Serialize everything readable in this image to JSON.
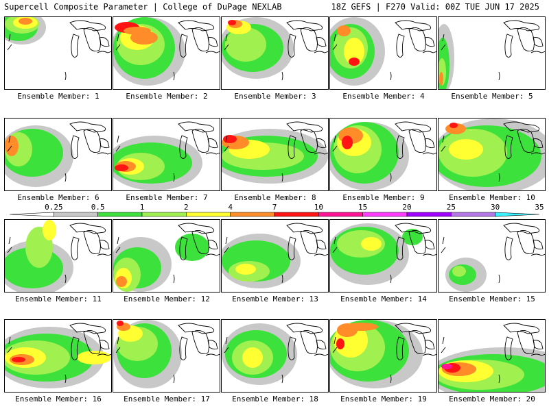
{
  "header": {
    "left": "Supercell Composite Parameter | College of DuPage NEXLAB",
    "right": "18Z GEFS | F270 Valid: 00Z TUE JUN 17 2025"
  },
  "legend": {
    "levels": [
      "0.25",
      "0.5",
      "1",
      "2",
      "4",
      "7",
      "10",
      "15",
      "20",
      "25",
      "30",
      "35"
    ],
    "colors": [
      "#ffffff",
      "#c8c8c8",
      "#3ce13c",
      "#a0f050",
      "#ffff32",
      "#ff8c28",
      "#ff1414",
      "#ff1493",
      "#ff3cff",
      "#a000ff",
      "#b478e6",
      "#3cf0ff"
    ]
  },
  "panels": [
    {
      "label": "Ensemble Member: 1"
    },
    {
      "label": "Ensemble Member: 2"
    },
    {
      "label": "Ensemble Member: 3"
    },
    {
      "label": "Ensemble Member: 4"
    },
    {
      "label": "Ensemble Member: 5"
    },
    {
      "label": "Ensemble Member: 6"
    },
    {
      "label": "Ensemble Member: 7"
    },
    {
      "label": "Ensemble Member: 8"
    },
    {
      "label": "Ensemble Member: 9"
    },
    {
      "label": "Ensemble Member: 10"
    },
    {
      "label": "Ensemble Member: 11"
    },
    {
      "label": "Ensemble Member: 12"
    },
    {
      "label": "Ensemble Member: 13"
    },
    {
      "label": "Ensemble Member: 14"
    },
    {
      "label": "Ensemble Member: 15"
    },
    {
      "label": "Ensemble Member: 16"
    },
    {
      "label": "Ensemble Member: 17"
    },
    {
      "label": "Ensemble Member: 18"
    },
    {
      "label": "Ensemble Member: 19"
    },
    {
      "label": "Ensemble Member: 20"
    }
  ]
}
